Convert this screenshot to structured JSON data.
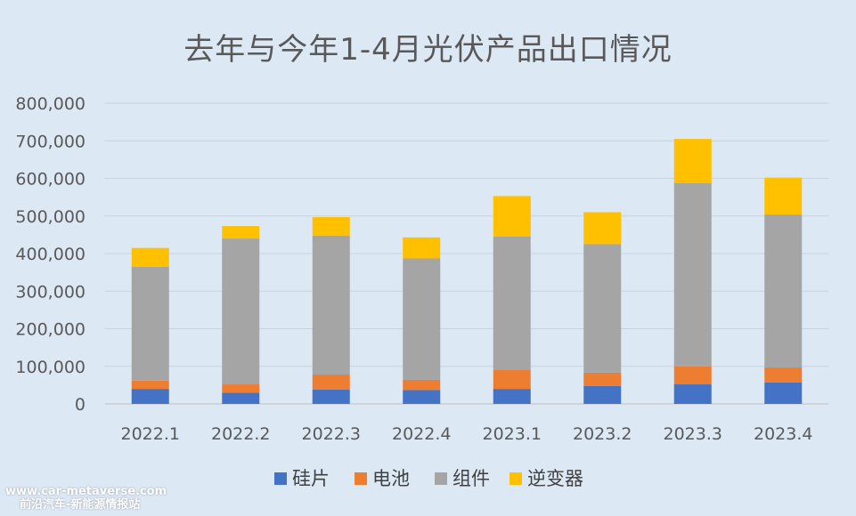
{
  "chart_data": {
    "type": "bar",
    "stacked": true,
    "title": "去年与今年1-4月光伏产品出口情况",
    "categories": [
      "2022.1",
      "2022.2",
      "2022.3",
      "2022.4",
      "2023.1",
      "2023.2",
      "2023.3",
      "2023.4"
    ],
    "series": [
      {
        "name": "硅片",
        "color": "#4472c4",
        "values": [
          40000,
          30000,
          38000,
          37000,
          40000,
          48000,
          52000,
          57000
        ]
      },
      {
        "name": "电池",
        "color": "#ed7d31",
        "values": [
          22000,
          22000,
          40000,
          27000,
          50000,
          35000,
          48000,
          40000
        ]
      },
      {
        "name": "组件",
        "color": "#a5a5a5",
        "values": [
          303000,
          388000,
          370000,
          323000,
          355000,
          342000,
          487000,
          407000
        ]
      },
      {
        "name": "逆变器",
        "color": "#ffc000",
        "values": [
          50000,
          33000,
          49000,
          56000,
          108000,
          85000,
          118000,
          98000
        ]
      }
    ],
    "ylim": [
      0,
      800000
    ],
    "yticks": [
      0,
      100000,
      200000,
      300000,
      400000,
      500000,
      600000,
      700000,
      800000
    ],
    "ytick_labels": [
      "0",
      "100,000",
      "200,000",
      "300,000",
      "400,000",
      "500,000",
      "600,000",
      "700,000",
      "800,000"
    ],
    "grid": true,
    "legend_position": "bottom"
  },
  "watermark": {
    "url": "www.car-metaverse.com",
    "name": "前沿汽车-新能源情报站"
  }
}
